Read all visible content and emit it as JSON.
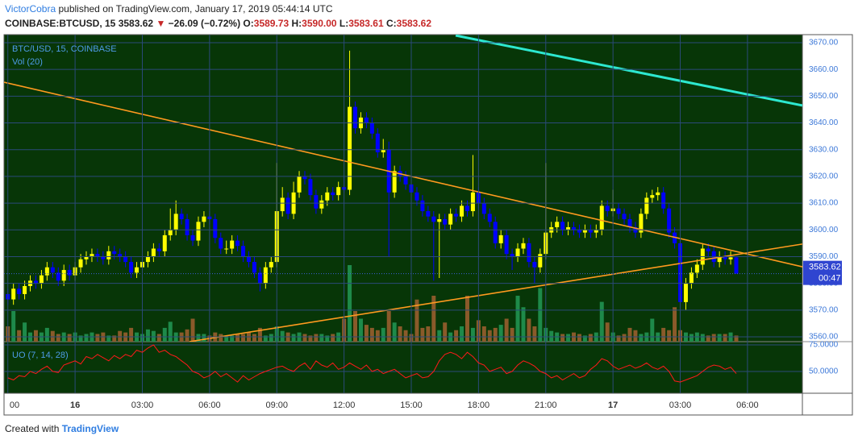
{
  "header": {
    "author": "VictorCobra",
    "published": "published on TradingView.com, January 17, 2019 05:44:14 UTC",
    "symbol": "COINBASE:BTCUSD, 15",
    "last": "3583.62",
    "arrow": "▼",
    "change": "−26.09 (−0.72%)",
    "ohlc": [
      {
        "key": "O:",
        "value": "3589.73"
      },
      {
        "key": "H:",
        "value": "3590.00"
      },
      {
        "key": "L:",
        "value": "3583.61"
      },
      {
        "key": "C:",
        "value": "3583.62"
      }
    ]
  },
  "footer": {
    "text": "Created with",
    "brand": "TradingView"
  },
  "chart_data": {
    "type": "candlestick",
    "title": "BTC/USD, 15, COINBASE",
    "volume_label": "Vol (20)",
    "up_color": "#ffff00",
    "down_color": "#0000ff",
    "volume_up_color": "#1e8a4a",
    "volume_down_color": "#8a5a2a",
    "xlim": [
      -3.17,
      32.45
    ],
    "ylim": [
      3558.2,
      3673.0
    ],
    "grid": true,
    "xticks": [
      {
        "value": -3,
        "label": "00"
      },
      {
        "value": 0,
        "label": "16"
      },
      {
        "value": 3,
        "label": "03:00"
      },
      {
        "value": 6,
        "label": "06:00"
      },
      {
        "value": 9,
        "label": "09:00"
      },
      {
        "value": 12,
        "label": "12:00"
      },
      {
        "value": 15,
        "label": "15:00"
      },
      {
        "value": 18,
        "label": "18:00"
      },
      {
        "value": 21,
        "label": "21:00"
      },
      {
        "value": 24,
        "label": "17"
      },
      {
        "value": 27,
        "label": "03:00"
      },
      {
        "value": 30,
        "label": "06:00"
      }
    ],
    "yticks": [
      {
        "value": 3560,
        "label": "3560.00"
      },
      {
        "value": 3570,
        "label": "3570.00"
      },
      {
        "value": 3580,
        "label": "3580.00"
      },
      {
        "value": 3590,
        "label": "3590.00"
      },
      {
        "value": 3600,
        "label": "3600.00"
      },
      {
        "value": 3610,
        "label": "3610.00"
      },
      {
        "value": 3620,
        "label": "3620.00"
      },
      {
        "value": 3630,
        "label": "3630.00"
      },
      {
        "value": 3640,
        "label": "3640.00"
      },
      {
        "value": 3650,
        "label": "3650.00"
      },
      {
        "value": 3660,
        "label": "3660.00"
      },
      {
        "value": 3670,
        "label": "3670.00"
      }
    ],
    "last_price": 3583.62,
    "countdown": "00:47",
    "x": [
      -3,
      -2.75,
      -2.5,
      -2.25,
      -2,
      -1.75,
      -1.5,
      -1.25,
      -1,
      -0.75,
      -0.5,
      -0.25,
      0,
      0.25,
      0.5,
      0.75,
      1,
      1.25,
      1.5,
      1.75,
      2,
      2.25,
      2.5,
      2.75,
      3,
      3.25,
      3.5,
      3.75,
      4,
      4.25,
      4.5,
      4.75,
      5,
      5.25,
      5.5,
      5.75,
      6,
      6.25,
      6.5,
      6.75,
      7,
      7.25,
      7.5,
      7.75,
      8,
      8.25,
      8.5,
      8.75,
      9,
      9.25,
      9.5,
      9.75,
      10,
      10.25,
      10.5,
      10.75,
      11,
      11.25,
      11.5,
      11.75,
      12,
      12.25,
      12.5,
      12.75,
      13,
      13.25,
      13.5,
      13.75,
      14,
      14.25,
      14.5,
      14.75,
      15,
      15.25,
      15.5,
      15.75,
      16,
      16.25,
      16.5,
      16.75,
      17,
      17.25,
      17.5,
      17.75,
      18,
      18.25,
      18.5,
      18.75,
      19,
      19.25,
      19.5,
      19.75,
      20,
      20.25,
      20.5,
      20.75,
      21,
      21.25,
      21.5,
      21.75,
      22,
      22.25,
      22.5,
      22.75,
      23,
      23.25,
      23.5,
      23.75,
      24,
      24.25,
      24.5,
      24.75,
      25,
      25.25,
      25.5,
      25.75,
      26,
      26.25,
      26.5,
      26.75,
      27,
      27.25,
      27.5,
      27.75,
      28,
      28.25,
      28.5,
      28.75,
      29,
      29.25,
      29.5
    ],
    "open": [
      3576,
      3574,
      3578,
      3576,
      3579,
      3581,
      3580,
      3583,
      3586,
      3584,
      3581,
      3585,
      3583,
      3586,
      3589,
      3590,
      3591,
      3590,
      3589,
      3592,
      3591,
      3590,
      3588,
      3584,
      3586,
      3588,
      3590,
      3593,
      3592,
      3598,
      3600,
      3606,
      3604,
      3598,
      3596,
      3603,
      3605,
      3604,
      3597,
      3593,
      3593,
      3596,
      3594,
      3590,
      3588,
      3584,
      3580,
      3586,
      3588,
      3607,
      3612,
      3606,
      3614,
      3620,
      3619,
      3613,
      3608,
      3611,
      3614,
      3613,
      3616,
      3615,
      3646,
      3638,
      3642,
      3640,
      3636,
      3629,
      3630,
      3614,
      3622,
      3620,
      3617,
      3614,
      3611,
      3607,
      3605,
      3603,
      3604,
      3602,
      3606,
      3605,
      3609,
      3607,
      3614,
      3610,
      3606,
      3603,
      3595,
      3598,
      3591,
      3590,
      3593,
      3595,
      3588,
      3586,
      3591,
      3599,
      3601,
      3603,
      3600,
      3601,
      3600,
      3599,
      3600,
      3599,
      3600,
      3609,
      3607,
      3608,
      3606,
      3604,
      3601,
      3599,
      3606,
      3612,
      3613,
      3614,
      3608,
      3599,
      3595,
      3573,
      3580,
      3584,
      3587,
      3593,
      3592,
      3588,
      3590,
      3589,
      3589.73
    ],
    "high": [
      3578,
      3580,
      3580,
      3581,
      3583,
      3583,
      3585,
      3588,
      3588,
      3586,
      3587,
      3587,
      3588,
      3591,
      3592,
      3593,
      3593,
      3592,
      3594,
      3594,
      3593,
      3592,
      3590,
      3588,
      3590,
      3592,
      3595,
      3595,
      3600,
      3608,
      3611,
      3608,
      3606,
      3600,
      3605,
      3607,
      3607,
      3606,
      3599,
      3596,
      3598,
      3598,
      3596,
      3592,
      3590,
      3586,
      3588,
      3590,
      3625,
      3616,
      3614,
      3618,
      3622,
      3622,
      3621,
      3615,
      3613,
      3616,
      3616,
      3618,
      3620,
      3667,
      3648,
      3644,
      3644,
      3642,
      3638,
      3634,
      3633,
      3624,
      3624,
      3622,
      3634,
      3616,
      3613,
      3609,
      3607,
      3606,
      3606,
      3608,
      3608,
      3611,
      3611,
      3628,
      3616,
      3612,
      3608,
      3605,
      3600,
      3600,
      3593,
      3595,
      3597,
      3597,
      3590,
      3593,
      3625,
      3603,
      3605,
      3605,
      3603,
      3603,
      3602,
      3602,
      3602,
      3602,
      3611,
      3611,
      3615,
      3610,
      3608,
      3606,
      3603,
      3608,
      3614,
      3615,
      3616,
      3616,
      3610,
      3601,
      3597,
      3582,
      3586,
      3589,
      3595,
      3595,
      3594,
      3592,
      3592,
      3592,
      3590.0
    ],
    "low": [
      3572,
      3572,
      3574,
      3574,
      3577,
      3578,
      3578,
      3581,
      3582,
      3579,
      3579,
      3581,
      3581,
      3584,
      3587,
      3588,
      3588,
      3587,
      3587,
      3589,
      3588,
      3586,
      3582,
      3582,
      3584,
      3586,
      3588,
      3590,
      3590,
      3596,
      3598,
      3602,
      3596,
      3594,
      3594,
      3601,
      3602,
      3595,
      3591,
      3591,
      3591,
      3592,
      3588,
      3586,
      3582,
      3577,
      3578,
      3584,
      3586,
      3605,
      3604,
      3604,
      3612,
      3617,
      3611,
      3606,
      3606,
      3609,
      3611,
      3611,
      3614,
      3613,
      3636,
      3636,
      3638,
      3634,
      3627,
      3627,
      3590,
      3612,
      3618,
      3615,
      3612,
      3609,
      3605,
      3603,
      3581,
      3582,
      3600,
      3600,
      3603,
      3603,
      3605,
      3605,
      3608,
      3604,
      3601,
      3593,
      3593,
      3589,
      3585,
      3588,
      3591,
      3586,
      3580,
      3584,
      3589,
      3597,
      3599,
      3598,
      3598,
      3598,
      3597,
      3597,
      3597,
      3597,
      3598,
      3605,
      3605,
      3604,
      3602,
      3599,
      3597,
      3597,
      3604,
      3610,
      3611,
      3606,
      3597,
      3593,
      3571,
      3570,
      3578,
      3582,
      3585,
      3590,
      3586,
      3586,
      3587,
      3587,
      3583.61
    ],
    "close": [
      3574,
      3578,
      3576,
      3579,
      3581,
      3580,
      3583,
      3586,
      3584,
      3581,
      3585,
      3583,
      3586,
      3589,
      3590,
      3591,
      3590,
      3589,
      3592,
      3591,
      3590,
      3588,
      3584,
      3586,
      3588,
      3590,
      3593,
      3592,
      3598,
      3600,
      3606,
      3604,
      3598,
      3596,
      3603,
      3605,
      3604,
      3597,
      3593,
      3593,
      3596,
      3594,
      3590,
      3588,
      3584,
      3580,
      3586,
      3588,
      3607,
      3612,
      3606,
      3614,
      3620,
      3619,
      3613,
      3608,
      3611,
      3614,
      3613,
      3616,
      3615,
      3646,
      3638,
      3642,
      3640,
      3636,
      3629,
      3630,
      3614,
      3622,
      3620,
      3617,
      3614,
      3611,
      3607,
      3605,
      3603,
      3604,
      3602,
      3606,
      3605,
      3609,
      3607,
      3614,
      3610,
      3606,
      3603,
      3595,
      3598,
      3591,
      3590,
      3593,
      3595,
      3588,
      3586,
      3591,
      3599,
      3601,
      3603,
      3600,
      3601,
      3600,
      3599,
      3600,
      3599,
      3600,
      3609,
      3607,
      3608,
      3606,
      3604,
      3601,
      3599,
      3606,
      3612,
      3613,
      3614,
      3608,
      3599,
      3595,
      3573,
      3580,
      3584,
      3587,
      3593,
      3592,
      3588,
      3590,
      3589,
      3589.73,
      3583.62
    ],
    "volume": [
      20,
      40,
      15,
      25,
      12,
      15,
      12,
      18,
      14,
      10,
      12,
      10,
      12,
      8,
      10,
      12,
      10,
      12,
      8,
      8,
      14,
      12,
      18,
      12,
      10,
      16,
      14,
      10,
      18,
      26,
      12,
      12,
      16,
      30,
      10,
      10,
      8,
      12,
      10,
      8,
      8,
      10,
      10,
      12,
      10,
      18,
      8,
      10,
      20,
      14,
      12,
      10,
      12,
      10,
      8,
      10,
      10,
      8,
      10,
      12,
      30,
      100,
      40,
      30,
      22,
      18,
      15,
      18,
      40,
      25,
      20,
      15,
      10,
      55,
      18,
      20,
      60,
      15,
      25,
      12,
      15,
      20,
      60,
      18,
      28,
      20,
      15,
      18,
      22,
      30,
      18,
      60,
      45,
      30,
      20,
      70,
      18,
      14,
      12,
      10,
      10,
      12,
      10,
      8,
      10,
      12,
      52,
      25,
      12,
      8,
      10,
      18,
      15,
      10,
      12,
      30,
      12,
      18,
      15,
      45,
      15,
      12,
      10,
      12,
      10,
      8,
      10,
      10,
      10,
      12,
      8
    ],
    "trendlines": [
      {
        "color": "#ff9a1f",
        "x": [
          -3.17,
          32.45
        ],
        "values": [
          3655.2,
          3586.2
        ]
      },
      {
        "color": "#ff9a1f",
        "x": [
          5.1,
          32.45
        ],
        "values": [
          3558.2,
          3594.7
        ]
      },
      {
        "color": "#2de8d0",
        "x": [
          16.98,
          32.45
        ],
        "values": [
          3672.7,
          3646.5
        ]
      }
    ],
    "indicator": {
      "name": "UO (7, 14, 28)",
      "color": "#ff1a1a",
      "ylim": [
        29.5,
        78.0
      ],
      "yticks": [
        {
          "value": 75,
          "label": "75.0000"
        },
        {
          "value": 50,
          "label": "50.0000"
        }
      ],
      "values": [
        44,
        42,
        46,
        45,
        50,
        48,
        52,
        55,
        50,
        49,
        56,
        58,
        60,
        57,
        64,
        62,
        66,
        63,
        60,
        65,
        62,
        66,
        64,
        70,
        68,
        72,
        75,
        68,
        70,
        66,
        64,
        60,
        56,
        50,
        48,
        44,
        46,
        50,
        45,
        48,
        44,
        40,
        46,
        42,
        45,
        48,
        50,
        52,
        54,
        55,
        52,
        50,
        55,
        58,
        52,
        60,
        56,
        54,
        58,
        52,
        54,
        58,
        55,
        52,
        56,
        50,
        52,
        48,
        50,
        52,
        48,
        44,
        46,
        48,
        44,
        45,
        50,
        60,
        66,
        68,
        66,
        62,
        68,
        64,
        58,
        56,
        50,
        52,
        54,
        48,
        50,
        56,
        60,
        58,
        55,
        50,
        48,
        44,
        46,
        42,
        45,
        48,
        44,
        46,
        52,
        56,
        62,
        60,
        55,
        52,
        54,
        56,
        53,
        55,
        58,
        54,
        52,
        55,
        50,
        41,
        40,
        42,
        44,
        46,
        50,
        54,
        56,
        55,
        52,
        54,
        48
      ]
    }
  }
}
